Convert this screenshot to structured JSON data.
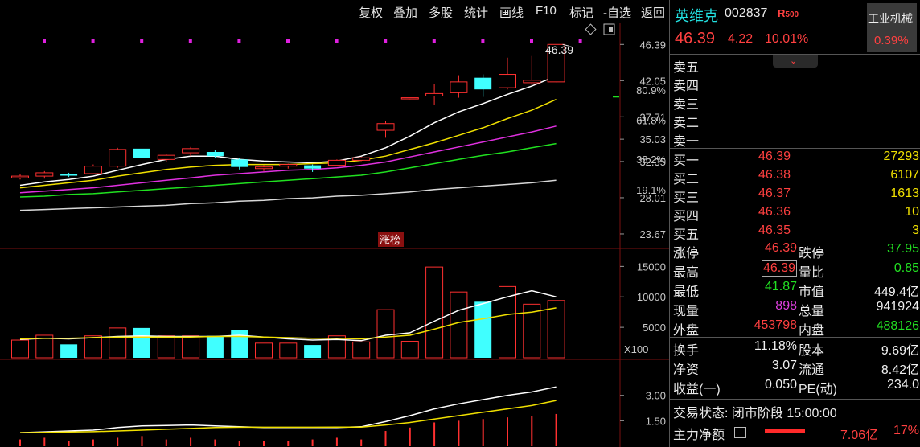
{
  "toolbar": {
    "items": [
      "复权",
      "叠加",
      "多股",
      "统计",
      "画线",
      "F10",
      "标记",
      "-自选",
      "返回"
    ]
  },
  "stock": {
    "name": "英维克",
    "code": "002837",
    "flag": "R",
    "flag_num": "500",
    "price": "46.39",
    "change": "4.22",
    "pct": "10.01%",
    "industry": "工业机械",
    "industry_pct": "0.39%"
  },
  "order_book": {
    "sell": [
      {
        "label": "卖五",
        "price": "",
        "vol": ""
      },
      {
        "label": "卖四",
        "price": "",
        "vol": ""
      },
      {
        "label": "卖三",
        "price": "",
        "vol": ""
      },
      {
        "label": "卖二",
        "price": "",
        "vol": ""
      },
      {
        "label": "卖一",
        "price": "",
        "vol": ""
      }
    ],
    "buy": [
      {
        "label": "买一",
        "price": "46.39",
        "vol": "27293"
      },
      {
        "label": "买二",
        "price": "46.38",
        "vol": "6107"
      },
      {
        "label": "买三",
        "price": "46.37",
        "vol": "1613"
      },
      {
        "label": "买四",
        "price": "46.36",
        "vol": "10"
      },
      {
        "label": "买五",
        "price": "46.35",
        "vol": "3"
      }
    ]
  },
  "stats": [
    {
      "l1": "涨停",
      "v1": "46.39",
      "c1": "red",
      "l2": "跌停",
      "v2": "37.95",
      "c2": "green"
    },
    {
      "l1": "最高",
      "v1": "46.39",
      "c1": "red",
      "l2": "量比",
      "v2": "0.85",
      "c2": "green"
    },
    {
      "l1": "最低",
      "v1": "41.87",
      "c1": "green",
      "l2": "市值",
      "v2": "449.4亿",
      "c2": "white"
    },
    {
      "l1": "现量",
      "v1": "898",
      "c1": "magenta",
      "l2": "总量",
      "v2": "941924",
      "c2": "white"
    },
    {
      "l1": "外盘",
      "v1": "453798",
      "c1": "red",
      "l2": "内盘",
      "v2": "488126",
      "c2": "green"
    }
  ],
  "stats2": [
    {
      "l1": "换手",
      "v1": "11.18%",
      "l2": "股本",
      "v2": "9.69亿"
    },
    {
      "l1": "净资",
      "v1": "3.07",
      "l2": "流通",
      "v2": "8.42亿"
    },
    {
      "l1": "收益(一)",
      "v1": "0.050",
      "l2": "PE(动)",
      "v2": "234.0"
    }
  ],
  "trade_status": "交易状态: 闭市阶段 15:00:00",
  "main_flow": {
    "label": "主力净额",
    "value": "7.06亿",
    "pct": "17%"
  },
  "chart_labels": {
    "last_price": "46.39",
    "zhangbang": "涨榜",
    "x100": "X100"
  },
  "chart_data": [
    {
      "type": "candlestick",
      "y_ticks": [
        "46.39",
        "42.05",
        "37.71",
        "35.03",
        "32.35",
        "28.01",
        "23.67"
      ],
      "y_tick_values": [
        46.39,
        42.05,
        37.71,
        35.03,
        32.35,
        28.01,
        23.67
      ],
      "pct_ticks": [
        "80.9%",
        "61.8%",
        "38.2%",
        "19.1%"
      ],
      "pct_tick_values": [
        40.94,
        37.31,
        32.62,
        28.99
      ],
      "ylim": [
        22.8,
        46.9
      ],
      "candles": [
        {
          "o": 30.4,
          "h": 30.8,
          "l": 30.2,
          "c": 30.6
        },
        {
          "o": 30.6,
          "h": 31.2,
          "l": 30.3,
          "c": 31.0
        },
        {
          "o": 30.8,
          "h": 31.0,
          "l": 30.5,
          "c": 30.7
        },
        {
          "o": 30.9,
          "h": 32.0,
          "l": 30.8,
          "c": 31.8
        },
        {
          "o": 31.8,
          "h": 34.0,
          "l": 31.6,
          "c": 33.8
        },
        {
          "o": 33.9,
          "h": 35.0,
          "l": 32.6,
          "c": 32.8
        },
        {
          "o": 32.6,
          "h": 33.3,
          "l": 32.3,
          "c": 33.1
        },
        {
          "o": 33.4,
          "h": 34.1,
          "l": 33.0,
          "c": 33.9
        },
        {
          "o": 33.5,
          "h": 33.7,
          "l": 32.8,
          "c": 33.0
        },
        {
          "o": 32.6,
          "h": 32.8,
          "l": 31.4,
          "c": 31.7
        },
        {
          "o": 31.5,
          "h": 31.9,
          "l": 31.2,
          "c": 31.7
        },
        {
          "o": 31.8,
          "h": 32.1,
          "l": 31.5,
          "c": 32.0
        },
        {
          "o": 31.9,
          "h": 32.0,
          "l": 31.1,
          "c": 31.5
        },
        {
          "o": 31.9,
          "h": 32.6,
          "l": 31.8,
          "c": 32.5
        },
        {
          "o": 32.5,
          "h": 32.9,
          "l": 32.4,
          "c": 32.8
        },
        {
          "o": 36.1,
          "h": 37.2,
          "l": 35.2,
          "c": 36.9
        },
        {
          "o": 39.9,
          "h": 40.0,
          "l": 39.8,
          "c": 40.0
        },
        {
          "o": 40.2,
          "h": 41.6,
          "l": 39.1,
          "c": 40.5
        },
        {
          "o": 40.6,
          "h": 42.7,
          "l": 40.0,
          "c": 41.9
        },
        {
          "o": 42.4,
          "h": 42.8,
          "l": 40.1,
          "c": 41.0
        },
        {
          "o": 41.2,
          "h": 44.8,
          "l": 41.0,
          "c": 42.8
        },
        {
          "o": 41.8,
          "h": 45.0,
          "l": 41.5,
          "c": 42.1
        },
        {
          "o": 41.9,
          "h": 46.39,
          "l": 41.87,
          "c": 46.39
        }
      ],
      "ma": [
        {
          "color": "#ffffff",
          "values": [
            29.5,
            29.9,
            30.2,
            30.6,
            31.3,
            32.0,
            32.6,
            33.0,
            33.0,
            32.6,
            32.4,
            32.3,
            32.2,
            32.4,
            33.0,
            34.0,
            35.4,
            37.0,
            38.3,
            39.3,
            40.4,
            41.4,
            42.6
          ]
        },
        {
          "color": "#f0e000",
          "values": [
            29.2,
            29.5,
            29.8,
            30.1,
            30.6,
            31.0,
            31.4,
            31.7,
            31.9,
            32.0,
            32.0,
            32.0,
            32.1,
            32.2,
            32.5,
            33.0,
            33.8,
            34.6,
            35.5,
            36.4,
            37.5,
            38.5,
            39.8
          ]
        },
        {
          "color": "#e030e0",
          "values": [
            28.6,
            28.8,
            29.0,
            29.2,
            29.5,
            29.8,
            30.1,
            30.4,
            30.7,
            30.9,
            31.1,
            31.3,
            31.4,
            31.6,
            31.9,
            32.3,
            32.9,
            33.5,
            34.1,
            34.7,
            35.3,
            35.9,
            36.6
          ]
        },
        {
          "color": "#20e020",
          "values": [
            28.1,
            28.2,
            28.4,
            28.5,
            28.7,
            28.9,
            29.1,
            29.3,
            29.5,
            29.7,
            29.9,
            30.1,
            30.3,
            30.5,
            30.7,
            31.1,
            31.6,
            32.1,
            32.6,
            33.1,
            33.5,
            34.0,
            34.5
          ]
        },
        {
          "color": "#d8d8d8",
          "values": [
            26.5,
            26.6,
            26.7,
            26.8,
            26.9,
            27.0,
            27.1,
            27.3,
            27.4,
            27.6,
            27.7,
            27.9,
            28.0,
            28.2,
            28.3,
            28.5,
            28.7,
            29.0,
            29.2,
            29.4,
            29.6,
            29.8,
            30.1
          ]
        }
      ]
    },
    {
      "type": "bar",
      "name": "volume",
      "y_ticks": [
        "15000",
        "10000",
        "5000"
      ],
      "y_tick_values": [
        15000,
        10000,
        5000
      ],
      "ylim": [
        0,
        16500
      ],
      "values": [
        2900,
        3700,
        2200,
        3600,
        4900,
        4900,
        3600,
        3600,
        3600,
        4500,
        2400,
        2400,
        2100,
        3600,
        2600,
        7900,
        2700,
        14900,
        10800,
        9200,
        11700,
        8800,
        9400
      ],
      "ma": [
        {
          "color": "#ffffff",
          "values": [
            3000,
            3200,
            3100,
            3300,
            3500,
            3600,
            3500,
            3500,
            3500,
            3700,
            3400,
            3100,
            2900,
            3000,
            2800,
            3700,
            4100,
            6000,
            7800,
            8900,
            10000,
            11000,
            10000
          ]
        },
        {
          "color": "#f0e000",
          "values": [
            3100,
            3200,
            3200,
            3300,
            3400,
            3400,
            3400,
            3400,
            3500,
            3500,
            3400,
            3300,
            3200,
            3200,
            3100,
            3400,
            3700,
            4700,
            5800,
            6400,
            7100,
            7500,
            8200
          ]
        }
      ]
    },
    {
      "type": "line",
      "name": "indicator",
      "y_ticks": [
        "3.00",
        "1.50"
      ],
      "y_tick_values": [
        3.0,
        1.5
      ],
      "ylim": [
        0,
        4.6
      ],
      "values_white": [
        0.8,
        0.85,
        0.9,
        0.95,
        1.1,
        1.2,
        1.22,
        1.25,
        1.2,
        1.15,
        1.1,
        1.1,
        1.1,
        1.1,
        1.15,
        1.45,
        1.8,
        2.2,
        2.5,
        2.75,
        3.0,
        3.2,
        3.5
      ],
      "values_yellow": [
        0.8,
        0.82,
        0.84,
        0.86,
        0.9,
        0.95,
        1.0,
        1.05,
        1.1,
        1.12,
        1.12,
        1.12,
        1.12,
        1.13,
        1.13,
        1.25,
        1.4,
        1.6,
        1.8,
        2.0,
        2.2,
        2.4,
        2.7
      ],
      "bars": [
        0.4,
        0.5,
        0.3,
        0.4,
        0.5,
        0.6,
        0.4,
        0.5,
        0.4,
        0.3,
        0.3,
        0.3,
        0.4,
        0.5,
        0.4,
        0.9,
        1.1,
        1.4,
        1.5,
        1.6,
        1.7,
        1.8,
        1.9
      ]
    }
  ]
}
